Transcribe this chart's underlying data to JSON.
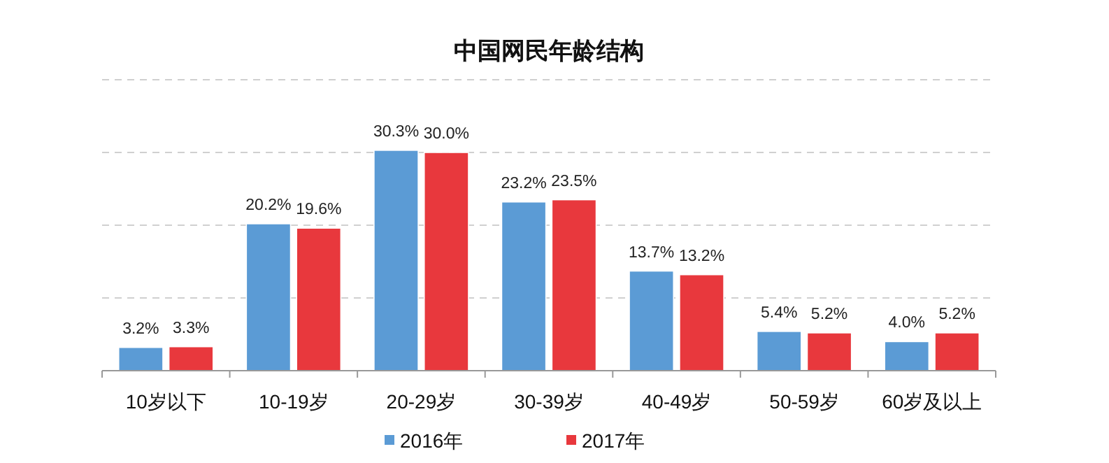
{
  "chart_data": {
    "type": "bar",
    "title": "中国网民年龄结构",
    "categories": [
      "10岁以下",
      "10-19岁",
      "20-29岁",
      "30-39岁",
      "40-49岁",
      "50-59岁",
      "60岁及以上"
    ],
    "series": [
      {
        "name": "2016年",
        "color": "#5b9bd5",
        "values": [
          3.2,
          20.2,
          30.3,
          23.2,
          13.7,
          5.4,
          4.0
        ],
        "value_labels": [
          "3.2%",
          "20.2%",
          "30.3%",
          "23.2%",
          "13.7%",
          "5.4%",
          "4.0%"
        ]
      },
      {
        "name": "2017年",
        "color": "#e8383d",
        "values": [
          3.3,
          19.6,
          30.0,
          23.5,
          13.2,
          5.2,
          5.2
        ],
        "value_labels": [
          "3.3%",
          "19.6%",
          "30.0%",
          "23.5%",
          "13.2%",
          "5.2%",
          "5.2%"
        ]
      }
    ],
    "ylim": [
      0,
      40
    ],
    "yticks": [
      {
        "value": 0,
        "label": null
      },
      {
        "value": 10,
        "label": null
      },
      {
        "value": 20,
        "label": null
      },
      {
        "value": 30,
        "label": null
      },
      {
        "value": 40,
        "label": null
      }
    ],
    "grid": "y",
    "legend": "bottom",
    "tick_labels": "x"
  }
}
